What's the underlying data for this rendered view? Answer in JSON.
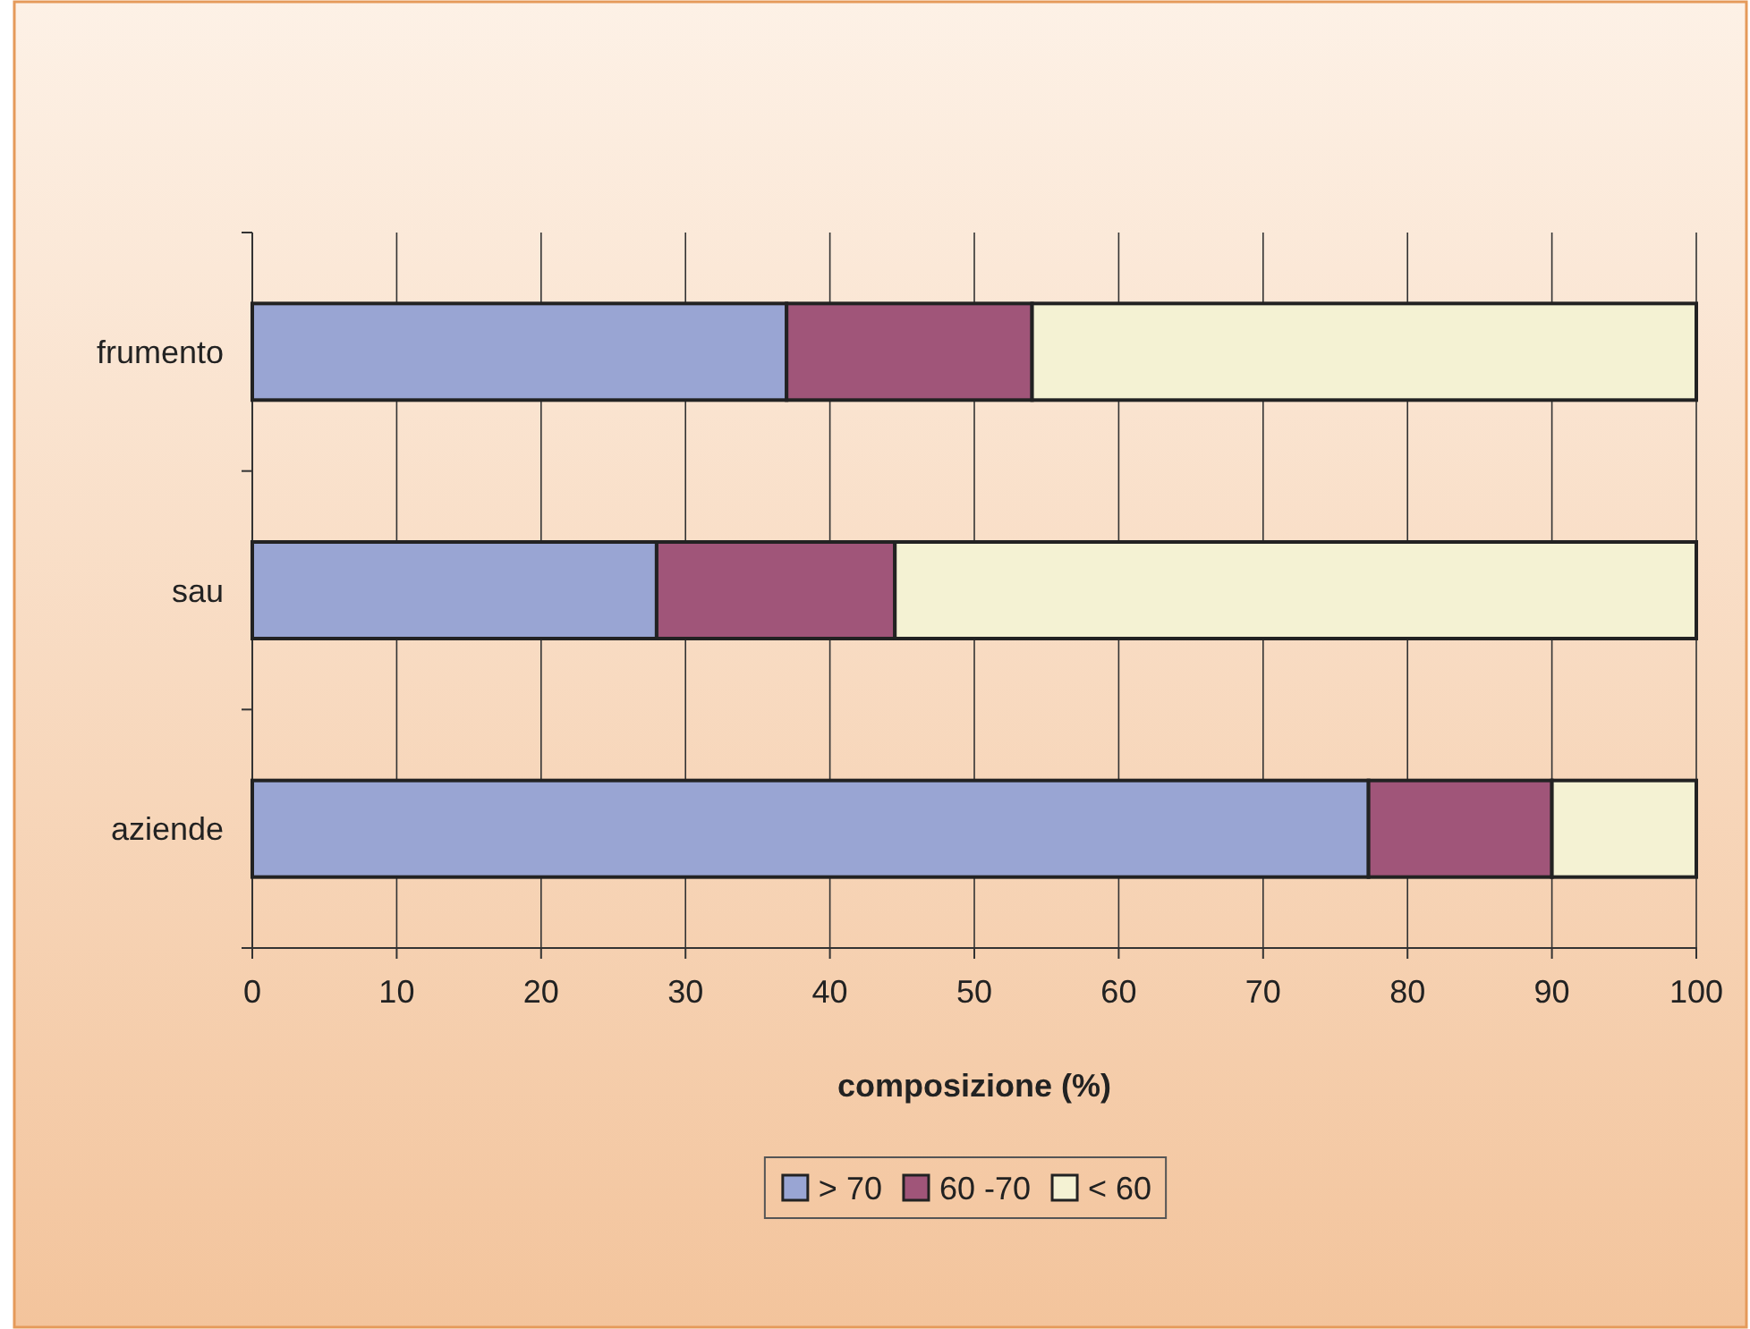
{
  "chart_data": {
    "type": "bar",
    "orientation": "horizontal",
    "stacked": true,
    "categories": [
      "frumento",
      "sau",
      "aziende"
    ],
    "series": [
      {
        "name": "> 70",
        "color": "#99a5d3",
        "values": [
          37,
          28,
          77.3
        ]
      },
      {
        "name": "60 -70",
        "color": "#a05579",
        "values": [
          17,
          16.5,
          12.7
        ]
      },
      {
        "name": "< 60",
        "color": "#f4f2d3",
        "values": [
          46,
          55.5,
          10
        ]
      }
    ],
    "xlabel": "composizione (%)",
    "xlim": [
      0,
      100
    ],
    "xticks": [
      0,
      10,
      20,
      30,
      40,
      50,
      60,
      70,
      80,
      90,
      100
    ],
    "grid": "x",
    "legend": "bottom"
  }
}
